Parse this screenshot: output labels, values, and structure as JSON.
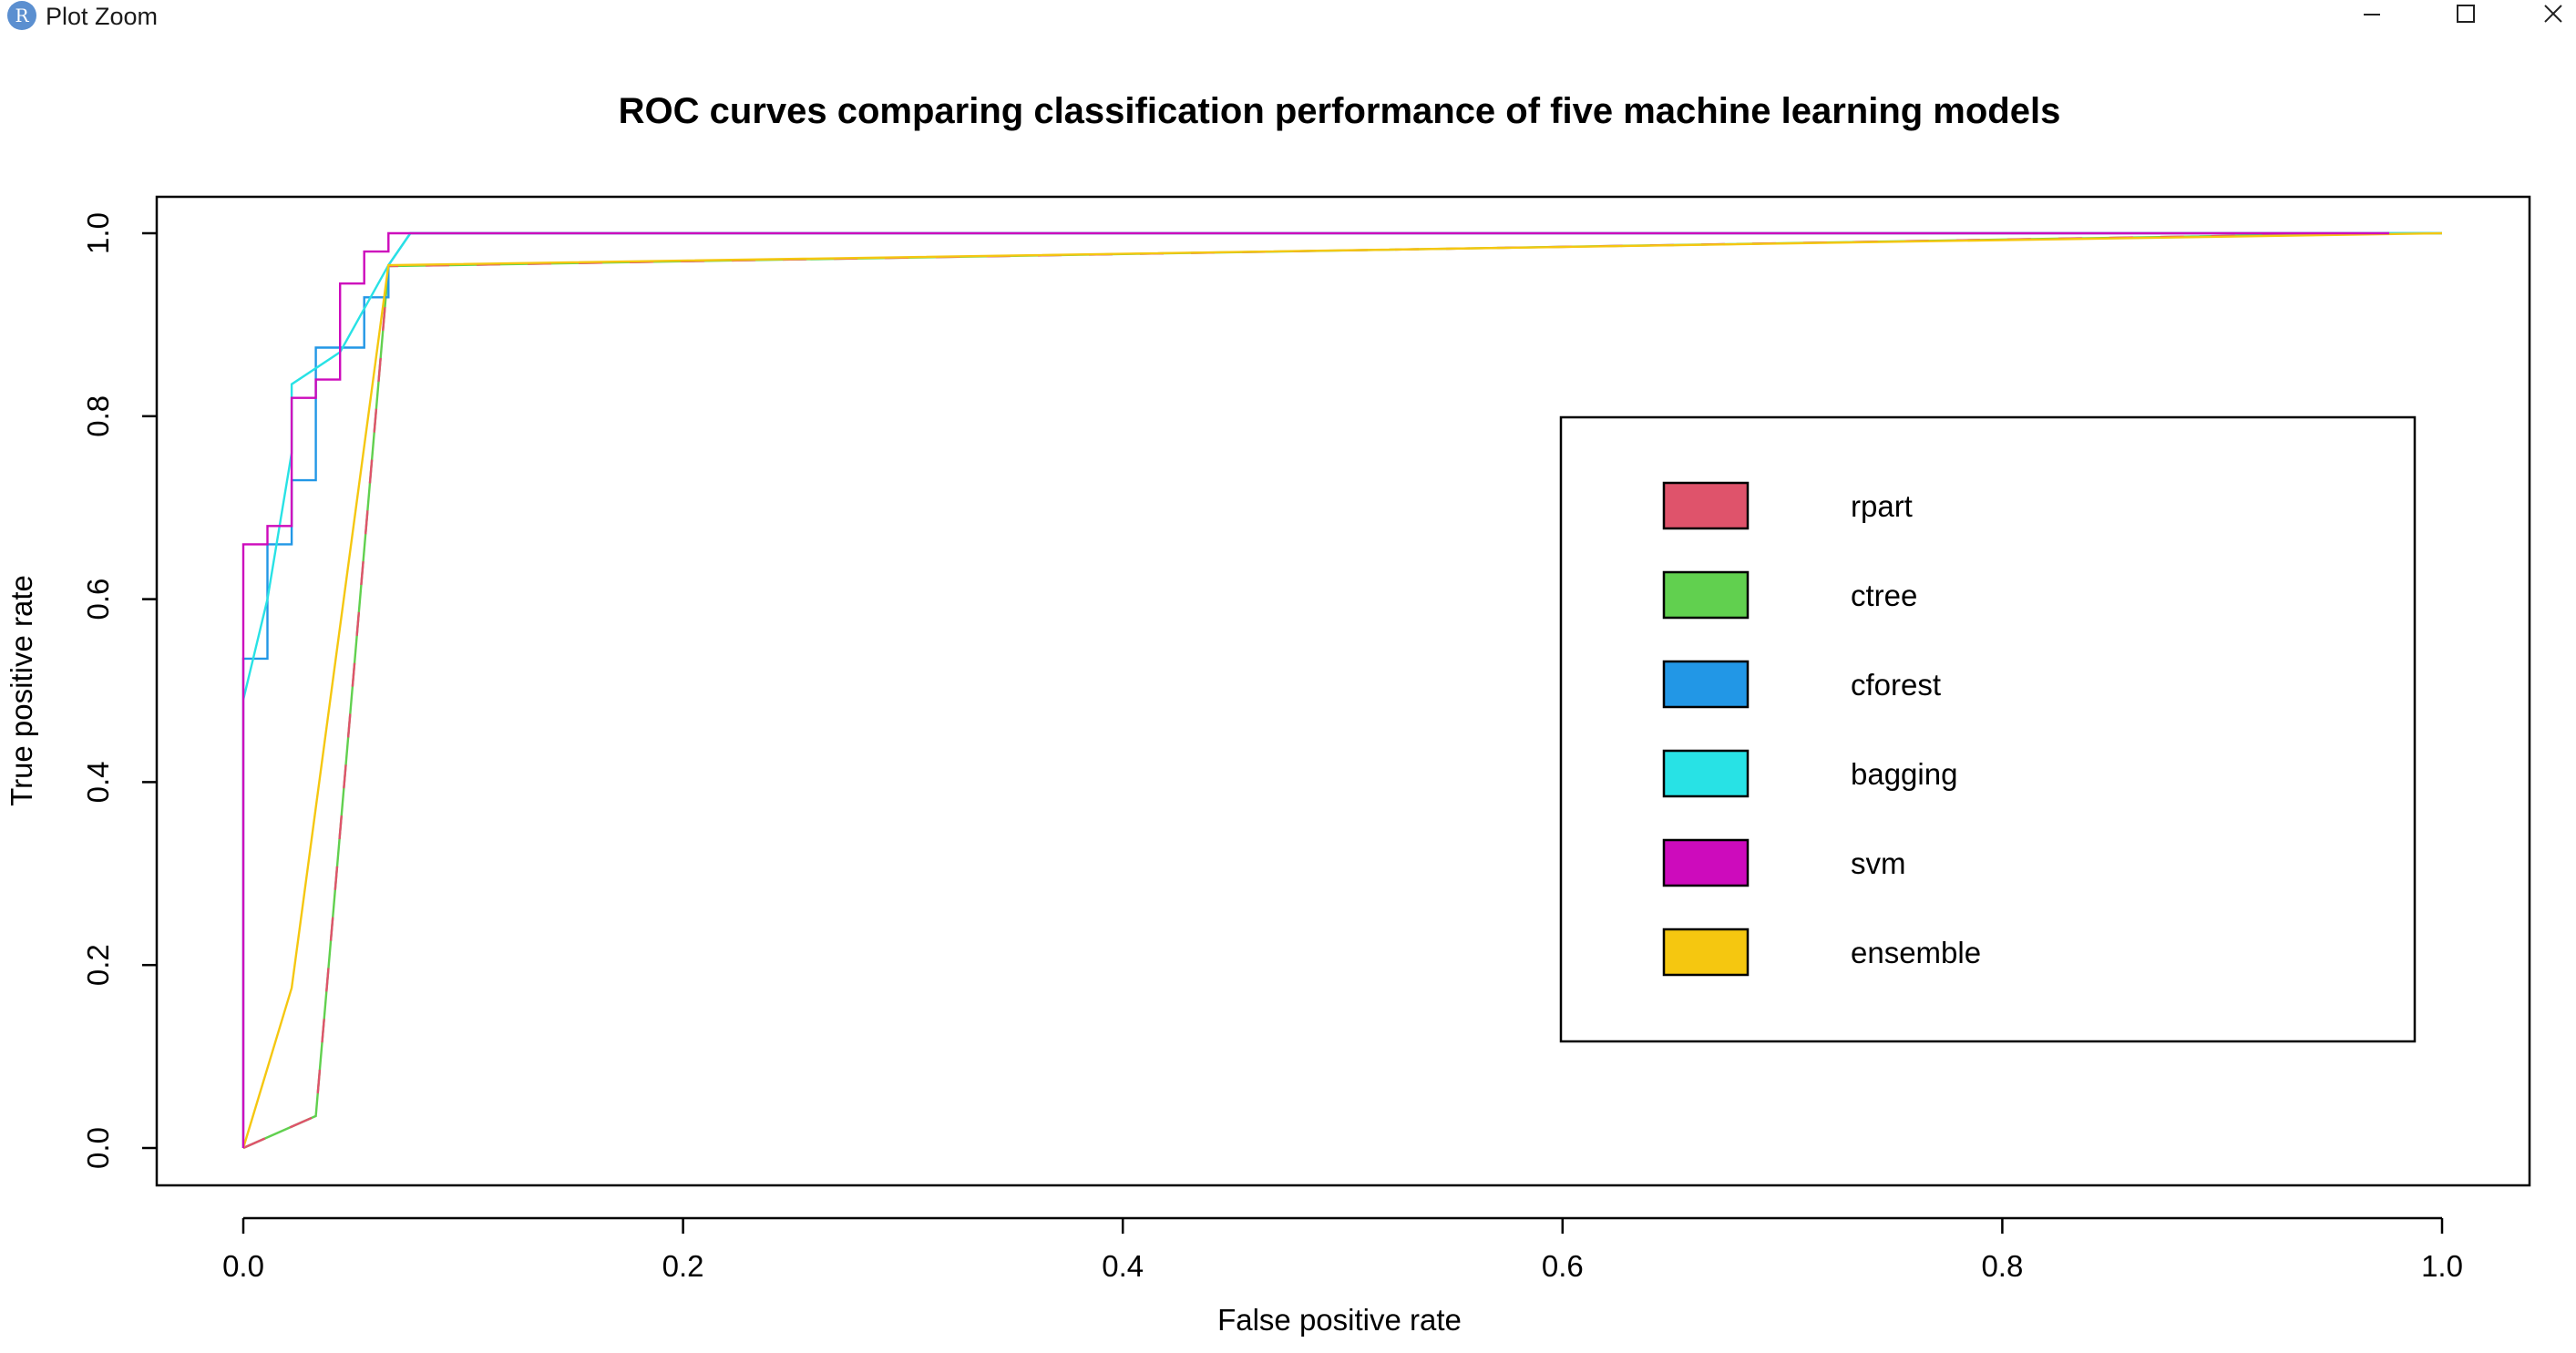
{
  "window": {
    "title": "Plot Zoom",
    "icon": "r-logo-icon"
  },
  "colors": {
    "rpart": "#DF536B",
    "ctree": "#61D04F",
    "cforest": "#2297E6",
    "bagging": "#28E2E5",
    "svm": "#CD0BBC",
    "ensemble": "#F5C710"
  },
  "chart_data": {
    "type": "line",
    "title": "ROC curves comparing classification performance of five machine learning models",
    "xlabel": "False positive rate",
    "ylabel": "True positive rate",
    "xlim": [
      0,
      1
    ],
    "ylim": [
      0,
      1
    ],
    "xticks": [
      "0.0",
      "0.2",
      "0.4",
      "0.6",
      "0.8",
      "1.0"
    ],
    "yticks": [
      "0.0",
      "0.2",
      "0.4",
      "0.6",
      "0.8",
      "1.0"
    ],
    "grid": false,
    "legend_position": "right",
    "legend": [
      "rpart",
      "ctree",
      "cforest",
      "bagging",
      "svm",
      "ensemble"
    ],
    "series": [
      {
        "name": "rpart",
        "color": "#DF536B",
        "x": [
          0,
          0.033,
          0.066,
          0.976
        ],
        "y": [
          0,
          0.035,
          0.964,
          1.0
        ]
      },
      {
        "name": "ctree",
        "color": "#61D04F",
        "x": [
          0,
          0.033,
          0.066,
          0.976
        ],
        "y": [
          0,
          0.035,
          0.964,
          1.0
        ]
      },
      {
        "name": "cforest",
        "color": "#2297E6",
        "x": [
          0,
          0,
          0.011,
          0.011,
          0.022,
          0.022,
          0.033,
          0.033,
          0.044,
          0.044,
          0.055,
          0.055,
          0.066,
          0.066,
          0.076,
          1.0
        ],
        "y": [
          0,
          0.535,
          0.535,
          0.66,
          0.66,
          0.73,
          0.73,
          0.875,
          0.875,
          0.875,
          0.875,
          0.93,
          0.93,
          0.965,
          1.0,
          1.0
        ]
      },
      {
        "name": "bagging",
        "color": "#28E2E5",
        "x": [
          0,
          0.011,
          0.022,
          0.022,
          0.044,
          0.066,
          0.076,
          1.0
        ],
        "y": [
          0.49,
          0.6,
          0.76,
          0.835,
          0.87,
          0.965,
          1.0,
          1.0
        ]
      },
      {
        "name": "svm",
        "color": "#CD0BBC",
        "x": [
          0,
          0,
          0.011,
          0.011,
          0.022,
          0.022,
          0.033,
          0.033,
          0.044,
          0.044,
          0.055,
          0.055,
          0.066,
          0.066,
          0.976
        ],
        "y": [
          0,
          0.66,
          0.66,
          0.68,
          0.68,
          0.82,
          0.82,
          0.84,
          0.84,
          0.945,
          0.945,
          0.98,
          0.98,
          1.0,
          1.0
        ]
      },
      {
        "name": "ensemble",
        "color": "#F5C710",
        "x": [
          0,
          0.022,
          0.066,
          0.066,
          1.0
        ],
        "y": [
          0,
          0.175,
          0.965,
          0.965,
          1.0
        ]
      }
    ]
  }
}
